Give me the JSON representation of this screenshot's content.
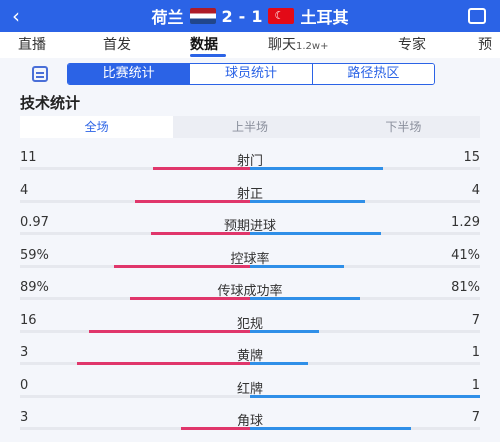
{
  "header": {
    "back_icon": "‹",
    "home_team": "荷兰",
    "home_score": "2",
    "score_sep": "-",
    "away_score": "1",
    "away_team": "土耳其"
  },
  "tabs": [
    {
      "label": "直播"
    },
    {
      "label": "首发"
    },
    {
      "label": "数据",
      "active": true
    },
    {
      "label": "聊天",
      "badge": "1.2w+"
    },
    {
      "label": "专家"
    },
    {
      "label": "预"
    }
  ],
  "subtabs": [
    {
      "label": "比赛统计",
      "active": true
    },
    {
      "label": "球员统计"
    },
    {
      "label": "路径热区"
    }
  ],
  "section_title": "技术统计",
  "halves": [
    {
      "label": "全场",
      "active": true
    },
    {
      "label": "上半场"
    },
    {
      "label": "下半场"
    }
  ],
  "colors": {
    "home": "#e0366b",
    "away": "#2f8fe8",
    "accent": "#2b63e6"
  },
  "stats": [
    {
      "label": "射门",
      "home": "11",
      "away": "15",
      "home_share": 0.42,
      "away_share": 0.58
    },
    {
      "label": "射正",
      "home": "4",
      "away": "4",
      "home_share": 0.5,
      "away_share": 0.5
    },
    {
      "label": "预期进球",
      "home": "0.97",
      "away": "1.29",
      "home_share": 0.43,
      "away_share": 0.57
    },
    {
      "label": "控球率",
      "home": "59%",
      "away": "41%",
      "home_share": 0.59,
      "away_share": 0.41
    },
    {
      "label": "传球成功率",
      "home": "89%",
      "away": "81%",
      "home_share": 0.52,
      "away_share": 0.48
    },
    {
      "label": "犯规",
      "home": "16",
      "away": "7",
      "home_share": 0.7,
      "away_share": 0.3
    },
    {
      "label": "黄牌",
      "home": "3",
      "away": "1",
      "home_share": 0.75,
      "away_share": 0.25
    },
    {
      "label": "红牌",
      "home": "0",
      "away": "1",
      "home_share": 0.0,
      "away_share": 1.0
    },
    {
      "label": "角球",
      "home": "3",
      "away": "7",
      "home_share": 0.3,
      "away_share": 0.7
    }
  ]
}
